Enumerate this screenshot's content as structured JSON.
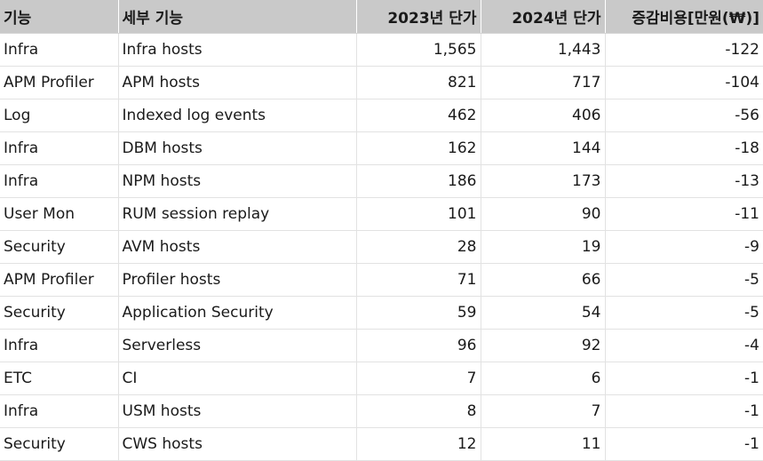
{
  "table": {
    "headers": [
      "기능",
      "세부 기능",
      "2023년 단가",
      "2024년 단가",
      "증감비용[만원(₩)]"
    ],
    "rows": [
      [
        "Infra",
        "Infra hosts",
        "1,565",
        "1,443",
        "-122"
      ],
      [
        "APM Profiler",
        "APM hosts",
        "821",
        "717",
        "-104"
      ],
      [
        "Log",
        "Indexed log events",
        "462",
        "406",
        "-56"
      ],
      [
        "Infra",
        "DBM hosts",
        "162",
        "144",
        "-18"
      ],
      [
        "Infra",
        "NPM hosts",
        "186",
        "173",
        "-13"
      ],
      [
        "User Mon",
        "RUM session replay",
        "101",
        "90",
        "-11"
      ],
      [
        "Security",
        "AVM hosts",
        "28",
        "19",
        "-9"
      ],
      [
        "APM Profiler",
        "Profiler hosts",
        "71",
        "66",
        "-5"
      ],
      [
        "Security",
        "Application Security",
        "59",
        "54",
        "-5"
      ],
      [
        "Infra",
        "Serverless",
        "96",
        "92",
        "-4"
      ],
      [
        "ETC",
        "CI",
        "7",
        "6",
        "-1"
      ],
      [
        "Infra",
        "USM hosts",
        "8",
        "7",
        "-1"
      ],
      [
        "Security",
        "CWS hosts",
        "12",
        "11",
        "-1"
      ]
    ]
  }
}
